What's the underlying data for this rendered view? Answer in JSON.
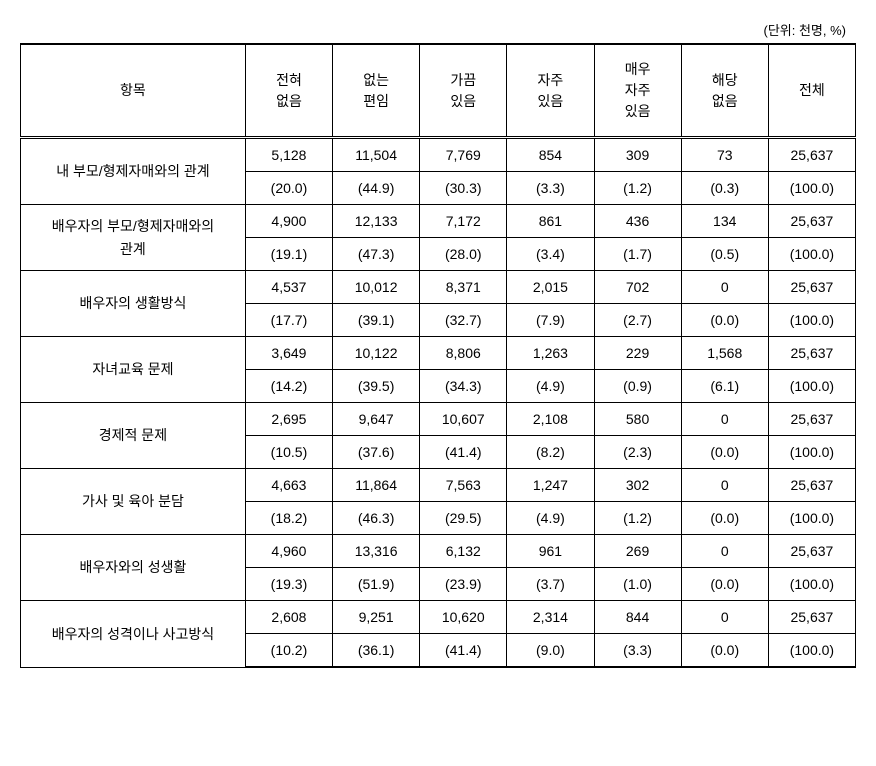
{
  "unit_label": "(단위: 천명, %)",
  "columns": {
    "item": "항목",
    "c1": "전혀\n없음",
    "c2": "없는\n편임",
    "c3": "가끔\n있음",
    "c4": "자주\n있음",
    "c5": "매우\n자주\n있음",
    "c6": "해당\n없음",
    "c7": "전체"
  },
  "rows": [
    {
      "label": "내 부모/형제자매와의 관계",
      "vals": [
        "5,128",
        "11,504",
        "7,769",
        "854",
        "309",
        "73",
        "25,637"
      ],
      "pcts": [
        "(20.0)",
        "(44.9)",
        "(30.3)",
        "(3.3)",
        "(1.2)",
        "(0.3)",
        "(100.0)"
      ]
    },
    {
      "label": "배우자의 부모/형제자매와의\n관계",
      "vals": [
        "4,900",
        "12,133",
        "7,172",
        "861",
        "436",
        "134",
        "25,637"
      ],
      "pcts": [
        "(19.1)",
        "(47.3)",
        "(28.0)",
        "(3.4)",
        "(1.7)",
        "(0.5)",
        "(100.0)"
      ]
    },
    {
      "label": "배우자의 생활방식",
      "vals": [
        "4,537",
        "10,012",
        "8,371",
        "2,015",
        "702",
        "0",
        "25,637"
      ],
      "pcts": [
        "(17.7)",
        "(39.1)",
        "(32.7)",
        "(7.9)",
        "(2.7)",
        "(0.0)",
        "(100.0)"
      ]
    },
    {
      "label": "자녀교육 문제",
      "vals": [
        "3,649",
        "10,122",
        "8,806",
        "1,263",
        "229",
        "1,568",
        "25,637"
      ],
      "pcts": [
        "(14.2)",
        "(39.5)",
        "(34.3)",
        "(4.9)",
        "(0.9)",
        "(6.1)",
        "(100.0)"
      ]
    },
    {
      "label": "경제적 문제",
      "vals": [
        "2,695",
        "9,647",
        "10,607",
        "2,108",
        "580",
        "0",
        "25,637"
      ],
      "pcts": [
        "(10.5)",
        "(37.6)",
        "(41.4)",
        "(8.2)",
        "(2.3)",
        "(0.0)",
        "(100.0)"
      ]
    },
    {
      "label": "가사 및 육아 분담",
      "vals": [
        "4,663",
        "11,864",
        "7,563",
        "1,247",
        "302",
        "0",
        "25,637"
      ],
      "pcts": [
        "(18.2)",
        "(46.3)",
        "(29.5)",
        "(4.9)",
        "(1.2)",
        "(0.0)",
        "(100.0)"
      ]
    },
    {
      "label": "배우자와의 성생활",
      "vals": [
        "4,960",
        "13,316",
        "6,132",
        "961",
        "269",
        "0",
        "25,637"
      ],
      "pcts": [
        "(19.3)",
        "(51.9)",
        "(23.9)",
        "(3.7)",
        "(1.0)",
        "(0.0)",
        "(100.0)"
      ]
    },
    {
      "label": "배우자의 성격이나 사고방식",
      "vals": [
        "2,608",
        "9,251",
        "10,620",
        "2,314",
        "844",
        "0",
        "25,637"
      ],
      "pcts": [
        "(10.2)",
        "(36.1)",
        "(41.4)",
        "(9.0)",
        "(3.3)",
        "(0.0)",
        "(100.0)"
      ]
    }
  ]
}
